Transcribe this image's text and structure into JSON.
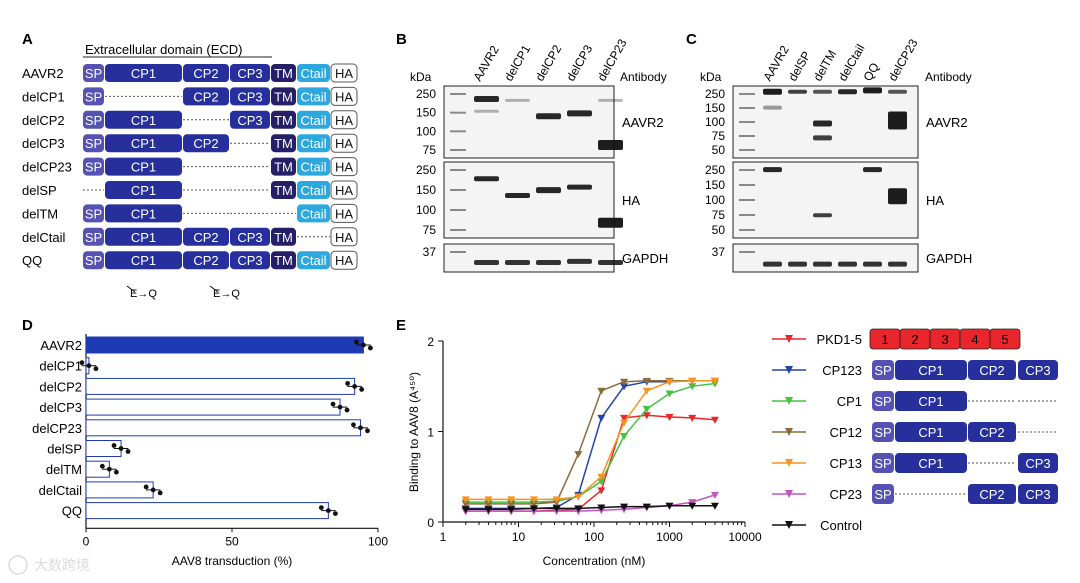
{
  "colors": {
    "sp": "#5552b3",
    "cp": "#262f9b",
    "tm": "#241f66",
    "ctail": "#2da8df",
    "ha": "#ffffff",
    "pkd": "#e8262b",
    "bar": "#1f3bb3"
  },
  "panelA": {
    "label": "A",
    "ecd_label": "Extracellular domain (ECD)",
    "mut_label": "E→Q",
    "rows": [
      {
        "name": "AAVR2",
        "sp": true,
        "cp1": true,
        "cp2": true,
        "cp3": true,
        "tm": true,
        "ctail": true
      },
      {
        "name": "delCP1",
        "sp": true,
        "cp1": false,
        "cp2": true,
        "cp3": true,
        "tm": true,
        "ctail": true
      },
      {
        "name": "delCP2",
        "sp": true,
        "cp1": true,
        "cp2": false,
        "cp3": true,
        "tm": true,
        "ctail": true
      },
      {
        "name": "delCP3",
        "sp": true,
        "cp1": true,
        "cp2": true,
        "cp3": false,
        "tm": true,
        "ctail": true
      },
      {
        "name": "delCP23",
        "sp": true,
        "cp1": true,
        "cp2": false,
        "cp3": false,
        "tm": true,
        "ctail": true
      },
      {
        "name": "delSP",
        "sp": false,
        "cp1": true,
        "cp2": false,
        "cp3": false,
        "tm": true,
        "ctail": true
      },
      {
        "name": "delTM",
        "sp": true,
        "cp1": true,
        "cp2": false,
        "cp3": false,
        "tm": false,
        "ctail": true
      },
      {
        "name": "delCtail",
        "sp": true,
        "cp1": true,
        "cp2": true,
        "cp3": true,
        "tm": true,
        "ctail": false
      },
      {
        "name": "QQ",
        "sp": true,
        "cp1": true,
        "cp2": true,
        "cp3": true,
        "tm": true,
        "ctail": true
      }
    ],
    "domain_labels": {
      "sp": "SP",
      "cp1": "CP1",
      "cp2": "CP2",
      "cp3": "CP3",
      "tm": "TM",
      "ctail": "Ctail",
      "ha": "HA"
    }
  },
  "panelB": {
    "label": "B",
    "kda": "kDa",
    "antibody": "Antibody",
    "lanes": [
      "AAVR2",
      "delCP1",
      "delCP2",
      "delCP3",
      "delCP23"
    ],
    "blots": [
      {
        "name": "AAVR2",
        "markers": [
          "250",
          "150",
          "100",
          "75"
        ]
      },
      {
        "name": "HA",
        "markers": [
          "250",
          "150",
          "100",
          "75"
        ]
      },
      {
        "name": "GAPDH",
        "markers": [
          "37"
        ]
      }
    ]
  },
  "panelC": {
    "label": "C",
    "kda": "kDa",
    "antibody": "Antibody",
    "lanes": [
      "AAVR2",
      "delSP",
      "delTM",
      "delCtail",
      "QQ",
      "delCP23"
    ],
    "blots": [
      {
        "name": "AAVR2",
        "markers": [
          "250",
          "150",
          "100",
          "75",
          "50"
        ]
      },
      {
        "name": "HA",
        "markers": [
          "250",
          "150",
          "100",
          "75",
          "50"
        ]
      },
      {
        "name": "GAPDH",
        "markers": [
          "37"
        ]
      }
    ]
  },
  "panelD": {
    "label": "D",
    "xlabel": "AAV8 transduction (%)",
    "xticks": [
      "0",
      "50",
      "100"
    ],
    "chart_data": {
      "type": "bar",
      "orientation": "horizontal",
      "categories": [
        "AAVR2",
        "delCP1",
        "delCP2",
        "delCP3",
        "delCP23",
        "delSP",
        "delTM",
        "delCtail",
        "QQ"
      ],
      "values": [
        95,
        1,
        92,
        87,
        94,
        12,
        8,
        23,
        83
      ],
      "xlim": [
        0,
        100
      ],
      "xlabel": "AAV8 transduction (%)"
    }
  },
  "panelE": {
    "label": "E",
    "ylabel": "Binding to AAV8 (A⁴⁵⁰)",
    "xlabel": "Concentration (nM)",
    "xticks": [
      "1",
      "10",
      "100",
      "1000",
      "10000"
    ],
    "yticks": [
      "0",
      "1",
      "2"
    ],
    "chart_data": {
      "type": "line",
      "xscale": "log",
      "x": [
        2,
        4,
        8,
        16,
        32,
        62,
        125,
        250,
        500,
        1000,
        2000,
        4000
      ],
      "xlim": [
        1,
        10000
      ],
      "ylim": [
        0,
        2
      ],
      "xlabel": "Concentration (nM)",
      "ylabel": "Binding to AAV8 (A450)",
      "series": [
        {
          "name": "PKD1-5",
          "color": "#e8262b",
          "values": [
            0.12,
            0.12,
            0.12,
            0.12,
            0.13,
            0.14,
            0.35,
            1.15,
            1.18,
            1.16,
            1.15,
            1.13
          ]
        },
        {
          "name": "CP123",
          "color": "#2444a8",
          "values": [
            0.15,
            0.15,
            0.15,
            0.15,
            0.16,
            0.3,
            1.15,
            1.5,
            1.55,
            1.55,
            1.56,
            1.56
          ]
        },
        {
          "name": "CP1",
          "color": "#44c240",
          "values": [
            0.22,
            0.22,
            0.22,
            0.22,
            0.23,
            0.28,
            0.45,
            0.95,
            1.25,
            1.42,
            1.5,
            1.53
          ]
        },
        {
          "name": "CP12",
          "color": "#8a6b3a",
          "values": [
            0.2,
            0.2,
            0.2,
            0.2,
            0.22,
            0.75,
            1.45,
            1.55,
            1.56,
            1.56,
            1.56,
            1.56
          ]
        },
        {
          "name": "CP13",
          "color": "#f7931e",
          "values": [
            0.25,
            0.25,
            0.25,
            0.25,
            0.25,
            0.28,
            0.5,
            1.1,
            1.45,
            1.55,
            1.56,
            1.56
          ]
        },
        {
          "name": "CP23",
          "color": "#c255c2",
          "values": [
            0.12,
            0.12,
            0.12,
            0.12,
            0.12,
            0.12,
            0.13,
            0.14,
            0.16,
            0.18,
            0.22,
            0.3
          ]
        },
        {
          "name": "Control",
          "color": "#111111",
          "values": [
            0.14,
            0.14,
            0.14,
            0.15,
            0.15,
            0.15,
            0.16,
            0.17,
            0.17,
            0.18,
            0.18,
            0.18
          ]
        }
      ]
    },
    "legend": [
      {
        "name": "PKD1-5",
        "domains": [
          "1",
          "2",
          "3",
          "4",
          "5"
        ]
      },
      {
        "name": "CP123",
        "domains": [
          "SP",
          "CP1",
          "CP2",
          "CP3"
        ]
      },
      {
        "name": "CP1",
        "domains": [
          "SP",
          "CP1"
        ]
      },
      {
        "name": "CP12",
        "domains": [
          "SP",
          "CP1",
          "CP2"
        ]
      },
      {
        "name": "CP13",
        "domains": [
          "SP",
          "CP1",
          "CP3"
        ]
      },
      {
        "name": "CP23",
        "domains": [
          "SP",
          "CP2",
          "CP3"
        ]
      },
      {
        "name": "Control",
        "domains": []
      }
    ]
  },
  "watermark": "大数跨境"
}
